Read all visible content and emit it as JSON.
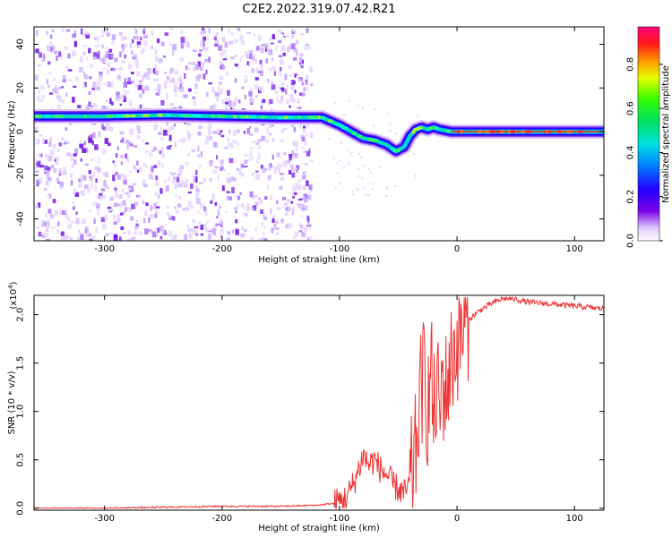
{
  "title": "C2E2.2022.319.07.42.R21",
  "chart_data": [
    {
      "type": "heatmap",
      "xlabel": "Height of straight line (km)",
      "ylabel": "Frequency (Hz)",
      "xlim": [
        -360,
        125
      ],
      "ylim": [
        -50,
        48
      ],
      "xticks": [
        -300,
        -200,
        -100,
        0,
        100
      ],
      "xtick_labels": [
        "-300",
        "-200",
        "-100",
        "0",
        "100"
      ],
      "yticks": [
        -40,
        -20,
        0,
        20,
        40
      ],
      "ytick_labels": [
        "-40",
        "-20",
        "0",
        "20",
        "40"
      ],
      "colorbar": {
        "label": "Normalized spectral amplitude",
        "range": [
          0,
          0.97
        ],
        "ticks": [
          0.0,
          0.2,
          0.4,
          0.6,
          0.8
        ],
        "tick_labels": [
          "0.0",
          "0.2",
          "0.4",
          "0.6",
          "0.8"
        ],
        "colormap": "rainbow (white-purple-blue-cyan-green-yellow-red-magenta)"
      },
      "ridge": {
        "x": [
          -360,
          -300,
          -250,
          -200,
          -150,
          -115,
          -100,
          -90,
          -80,
          -70,
          -60,
          -52,
          -45,
          -40,
          -35,
          -30,
          -25,
          -20,
          -15,
          -10,
          -5,
          0,
          50,
          125
        ],
        "y": [
          7,
          7,
          7.5,
          7,
          6.5,
          6.5,
          3,
          0,
          -3,
          -4,
          -6,
          -9,
          -7,
          -2,
          1,
          2,
          1,
          2,
          1,
          0.5,
          0,
          0,
          0,
          0
        ]
      },
      "noise_region_x": [
        -360,
        -125
      ],
      "grid": false
    },
    {
      "type": "line",
      "xlabel": "Height of straight line (km)",
      "ylabel": "SNR (10 * v/v)",
      "scale_label_base": "(x10",
      "scale_label_exp": "4",
      "scale_label_end": ")",
      "xlim": [
        -360,
        125
      ],
      "ylim": [
        -0.02,
        2.2
      ],
      "xticks": [
        -300,
        -200,
        -100,
        0,
        100
      ],
      "xtick_labels": [
        "-300",
        "-200",
        "-100",
        "0",
        "100"
      ],
      "yticks": [
        0.0,
        0.5,
        1.0,
        1.5,
        2.0
      ],
      "ytick_labels": [
        "0.0",
        "0.5",
        "1.0",
        "1.5",
        "2.0"
      ],
      "series": [
        {
          "color": "#ee3333",
          "x": [
            -360,
            -300,
            -250,
            -200,
            -150,
            -120,
            -105,
            -95,
            -90,
            -85,
            -80,
            -75,
            -70,
            -65,
            -60,
            -55,
            -50,
            -45,
            -40,
            -35,
            -32,
            -28,
            -25,
            -22,
            -20,
            -17,
            -15,
            -12,
            -10,
            -5,
            0,
            5,
            10,
            20,
            30,
            40,
            50,
            60,
            80,
            100,
            125
          ],
          "y": [
            0.0,
            0.0,
            0.01,
            0.02,
            0.02,
            0.03,
            0.05,
            0.1,
            0.2,
            0.35,
            0.55,
            0.45,
            0.5,
            0.4,
            0.35,
            0.25,
            0.2,
            0.15,
            0.25,
            0.6,
            1.1,
            1.4,
            1.0,
            1.5,
            0.9,
            1.3,
            1.0,
            1.3,
            1.2,
            1.5,
            1.7,
            1.85,
            1.95,
            2.05,
            2.12,
            2.17,
            2.16,
            2.13,
            2.11,
            2.09,
            2.06
          ]
        }
      ],
      "grid": false
    }
  ]
}
